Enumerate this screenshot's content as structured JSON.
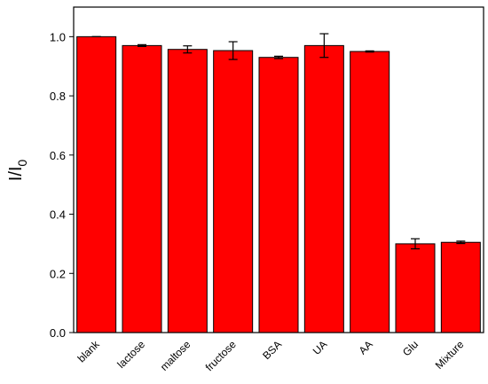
{
  "chart_data": {
    "type": "bar",
    "y_label": "I/I",
    "y_label_subscript": "0",
    "categories": [
      "blank",
      "lactose",
      "maltose",
      "fructose",
      "BSA",
      "UA",
      "AA",
      "Glu",
      "Mixture"
    ],
    "values": [
      1.0,
      0.97,
      0.957,
      0.953,
      0.93,
      0.97,
      0.95,
      0.3,
      0.305
    ],
    "errors": [
      0.0,
      0.003,
      0.012,
      0.03,
      0.004,
      0.04,
      0.002,
      0.017,
      0.004
    ],
    "color": "#ff0000",
    "ylim": [
      0,
      1.1
    ],
    "yticks": [
      {
        "value": 0,
        "label": "0.0"
      },
      {
        "value": 0.2,
        "label": "0.2"
      },
      {
        "value": 0.4,
        "label": "0.4"
      },
      {
        "value": 0.6,
        "label": "0.6"
      },
      {
        "value": 0.8,
        "label": "0.8"
      },
      {
        "value": 1.0,
        "label": "1.0"
      }
    ]
  }
}
